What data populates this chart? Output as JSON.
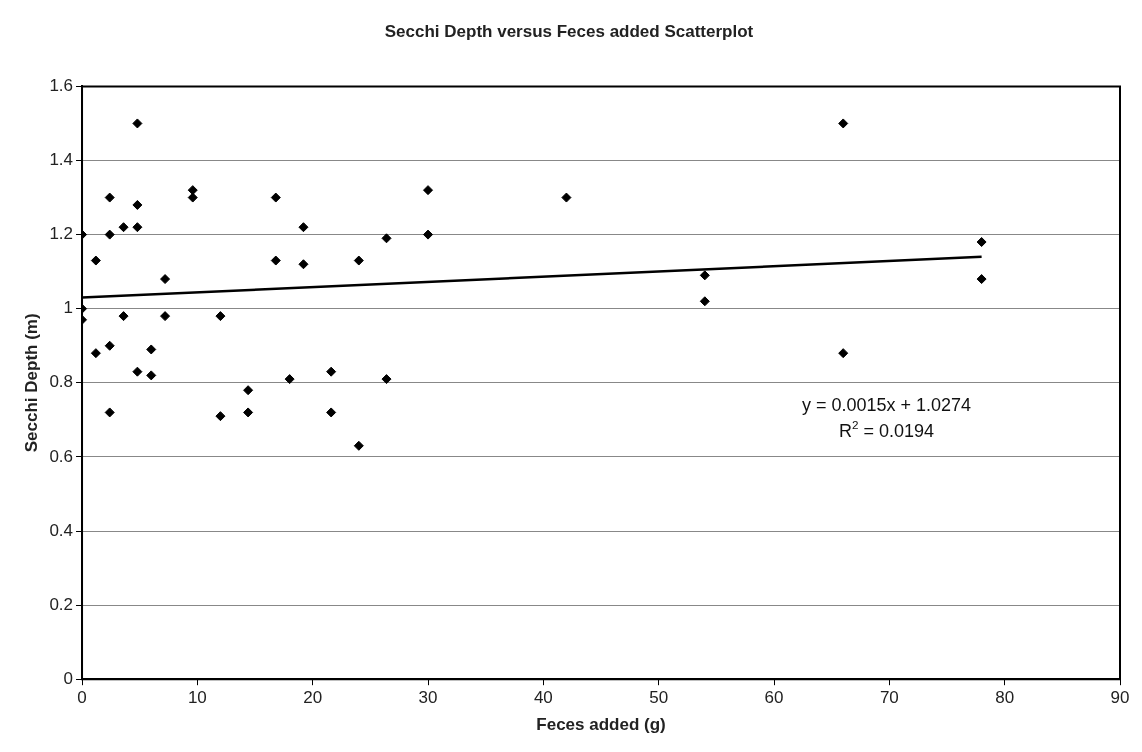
{
  "chart_data": {
    "type": "scatter",
    "title": "Secchi Depth versus Feces added Scatterplot",
    "xlabel": "Feces added (g)",
    "ylabel": "Secchi Depth (m)",
    "xlim": [
      0,
      90
    ],
    "xticks": [
      0,
      10,
      20,
      30,
      40,
      50,
      60,
      70,
      80,
      90
    ],
    "ylim": [
      0,
      1.6
    ],
    "yticks": [
      0,
      0.2,
      0.4,
      0.6,
      0.8,
      1,
      1.2,
      1.4,
      1.6
    ],
    "grid": "y",
    "legend": false,
    "marker": "diamond",
    "annotations": [
      "y = 0.0015x + 1.0274",
      "R$^{2}$ = 0.0194"
    ],
    "series": [
      {
        "color": "#000000",
        "x": [
          0,
          0,
          0,
          1.2,
          1.2,
          2.4,
          2.4,
          2.4,
          2.4,
          3.6,
          3.6,
          4.8,
          4.8,
          4.8,
          4.8,
          6,
          6,
          7.2,
          7.2,
          9.6,
          9.6,
          12,
          12,
          14.4,
          14.4,
          16.8,
          16.8,
          18,
          19.2,
          19.2,
          21.6,
          21.6,
          24,
          24,
          26.4,
          26.4,
          30,
          30,
          42,
          54,
          54,
          66,
          66,
          78,
          78
        ],
        "values": [
          1.2,
          1.0,
          0.97,
          1.13,
          0.88,
          1.3,
          1.2,
          0.9,
          0.72,
          1.22,
          0.98,
          1.5,
          1.28,
          1.22,
          0.83,
          0.89,
          0.82,
          1.08,
          0.98,
          1.32,
          1.3,
          0.98,
          0.71,
          0.78,
          0.72,
          1.3,
          1.13,
          0.81,
          1.22,
          1.12,
          0.83,
          0.72,
          1.13,
          0.63,
          1.19,
          0.81,
          1.32,
          1.2,
          1.3,
          1.09,
          1.02,
          1.5,
          0.88,
          1.18,
          1.08
        ]
      },
      {
        "type": "line",
        "color": "#000000",
        "marker": "none",
        "line_style": "solid",
        "x": [
          0,
          78
        ],
        "values": [
          1.03,
          1.14
        ]
      }
    ]
  }
}
